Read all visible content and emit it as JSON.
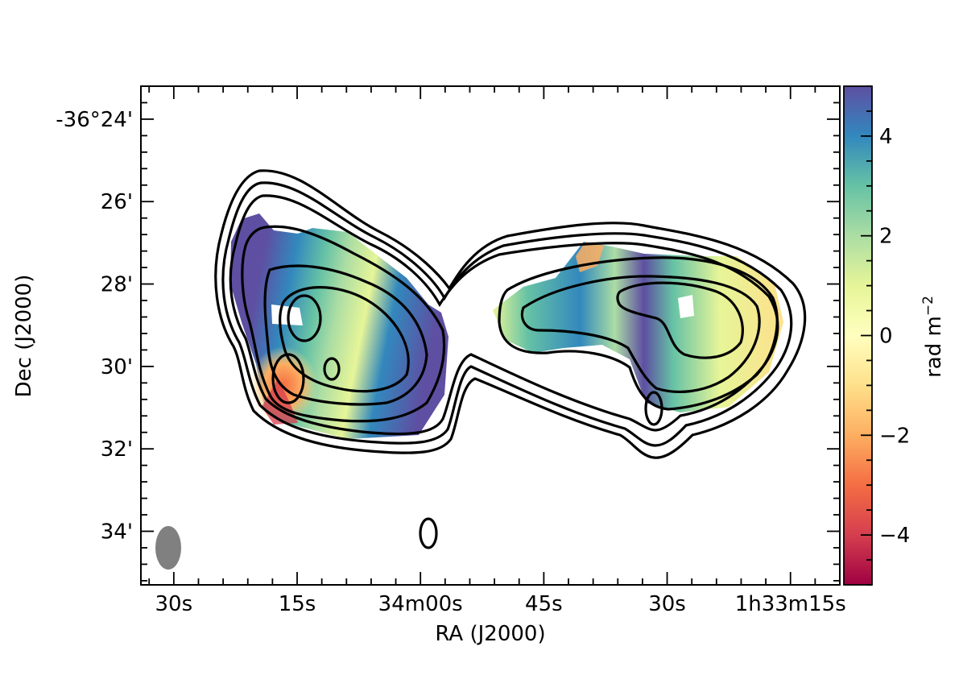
{
  "chart_data": {
    "type": "heatmap",
    "description_of_axes": "sky coordinates",
    "xlabel": "RA (J2000)",
    "ylabel": "Dec (J2000)",
    "x_ticks": [
      {
        "label": "30s",
        "ra_seconds_offset": 30
      },
      {
        "label": "15s",
        "ra_seconds_offset": 15
      },
      {
        "label": "34m00s",
        "ra_seconds_offset": 0
      },
      {
        "label": "45s",
        "ra_seconds_offset": -15
      },
      {
        "label": "30s",
        "ra_seconds_offset": -30
      },
      {
        "label": "1h33m15s",
        "ra_seconds_offset": -45
      }
    ],
    "y_ticks": [
      {
        "label": "-36°24'",
        "dec_arcmin": -24
      },
      {
        "label": "26'",
        "dec_arcmin": -26
      },
      {
        "label": "28'",
        "dec_arcmin": -28
      },
      {
        "label": "30'",
        "dec_arcmin": -30
      },
      {
        "label": "32'",
        "dec_arcmin": -32
      },
      {
        "label": "34'",
        "dec_arcmin": -34
      }
    ],
    "xlim_ra_seconds_offset": [
      34,
      -51
    ],
    "ylim_dec_arcmin": [
      -35.3,
      -23.2
    ],
    "colorbar": {
      "label": "rad m⁻²",
      "label_display": "rad m",
      "label_superscript": "−2",
      "min": -5,
      "max": 5,
      "ticks": [
        {
          "value": 4,
          "label": "4"
        },
        {
          "value": 2,
          "label": "2"
        },
        {
          "value": 0,
          "label": "0"
        },
        {
          "value": -2,
          "label": "−2"
        },
        {
          "value": -4,
          "label": "−4"
        }
      ],
      "colormap": [
        "#9e0142",
        "#d53e4f",
        "#f46d43",
        "#fdae61",
        "#fee08b",
        "#ffffbf",
        "#e6f598",
        "#abdda4",
        "#66c2a5",
        "#3288bd",
        "#5e4fa2"
      ]
    },
    "contours": "black contour lines of total intensity",
    "beam": "grey filled ellipse at lower-left",
    "grid": false
  }
}
